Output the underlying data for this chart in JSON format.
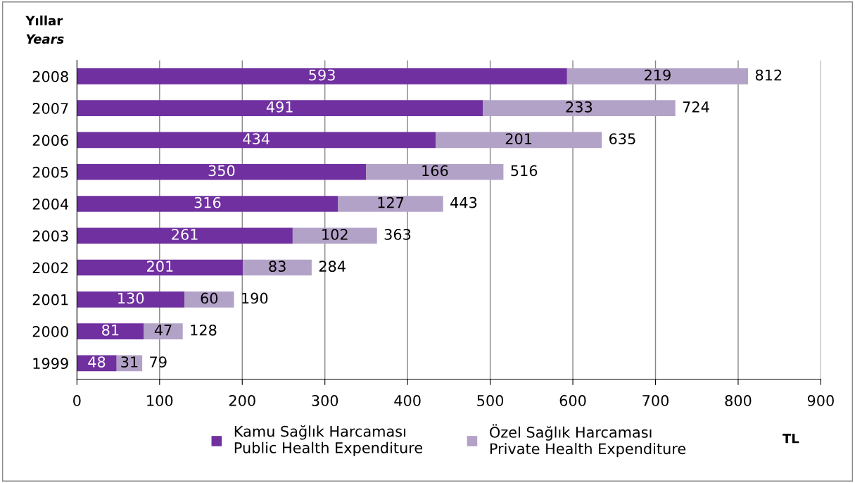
{
  "chart_data": {
    "type": "bar",
    "orientation": "horizontal",
    "stacked": true,
    "ylabel": "Yıllar\nYears",
    "xlabel": "TL",
    "categories": [
      "2008",
      "2007",
      "2006",
      "2005",
      "2004",
      "2003",
      "2002",
      "2001",
      "2000",
      "1999"
    ],
    "series": [
      {
        "name": "Kamu Sağlık Harcaması\nPublic Health Expenditure",
        "color": "#7030a0",
        "values": [
          593,
          491,
          434,
          350,
          316,
          261,
          201,
          130,
          81,
          48
        ]
      },
      {
        "name": "Özel Sağlık Harcaması\nPrivate Health Expenditure",
        "color": "#b3a2c7",
        "values": [
          219,
          233,
          201,
          166,
          127,
          102,
          83,
          60,
          47,
          31
        ]
      }
    ],
    "totals": [
      "812",
      "724",
      "635",
      "516",
      "443",
      "363",
      "284",
      "190",
      "128",
      "79"
    ],
    "data_labels": true,
    "xlim": [
      0,
      900
    ],
    "xticks": [
      0,
      100,
      200,
      300,
      400,
      500,
      600,
      700,
      800,
      900
    ],
    "grid": "x",
    "legend": "bottom"
  }
}
